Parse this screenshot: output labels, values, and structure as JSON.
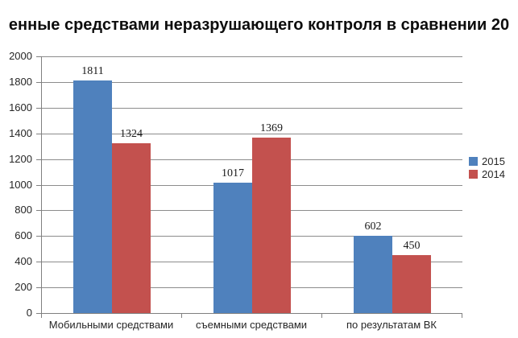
{
  "title": "енные средствами неразрушающего контроля в сравнении 20",
  "colors": {
    "series_2015": "#4F81BD",
    "series_2014": "#C3514E",
    "gridline": "#8C8C8C",
    "axis": "#808080",
    "label_text": "#262626",
    "background": "#FFFFFF"
  },
  "chart_data": {
    "type": "bar",
    "title": "енные средствами неразрушающего контроля в сравнении 20",
    "categories": [
      "Мобильными средствами",
      "съемными средствами",
      "по результатам ВК"
    ],
    "series": [
      {
        "name": "2015",
        "color": "#4F81BD",
        "values": [
          1811,
          1017,
          602
        ]
      },
      {
        "name": "2014",
        "color": "#C3514E",
        "values": [
          1324,
          1369,
          450
        ]
      }
    ],
    "xlabel": "",
    "ylabel": "",
    "ylim": [
      0,
      2000
    ],
    "ytick_step": 200,
    "yticks": [
      0,
      200,
      400,
      600,
      800,
      1000,
      1200,
      1400,
      1600,
      1800,
      2000
    ],
    "grid": true,
    "data_labels": true,
    "legend_position": "right"
  }
}
